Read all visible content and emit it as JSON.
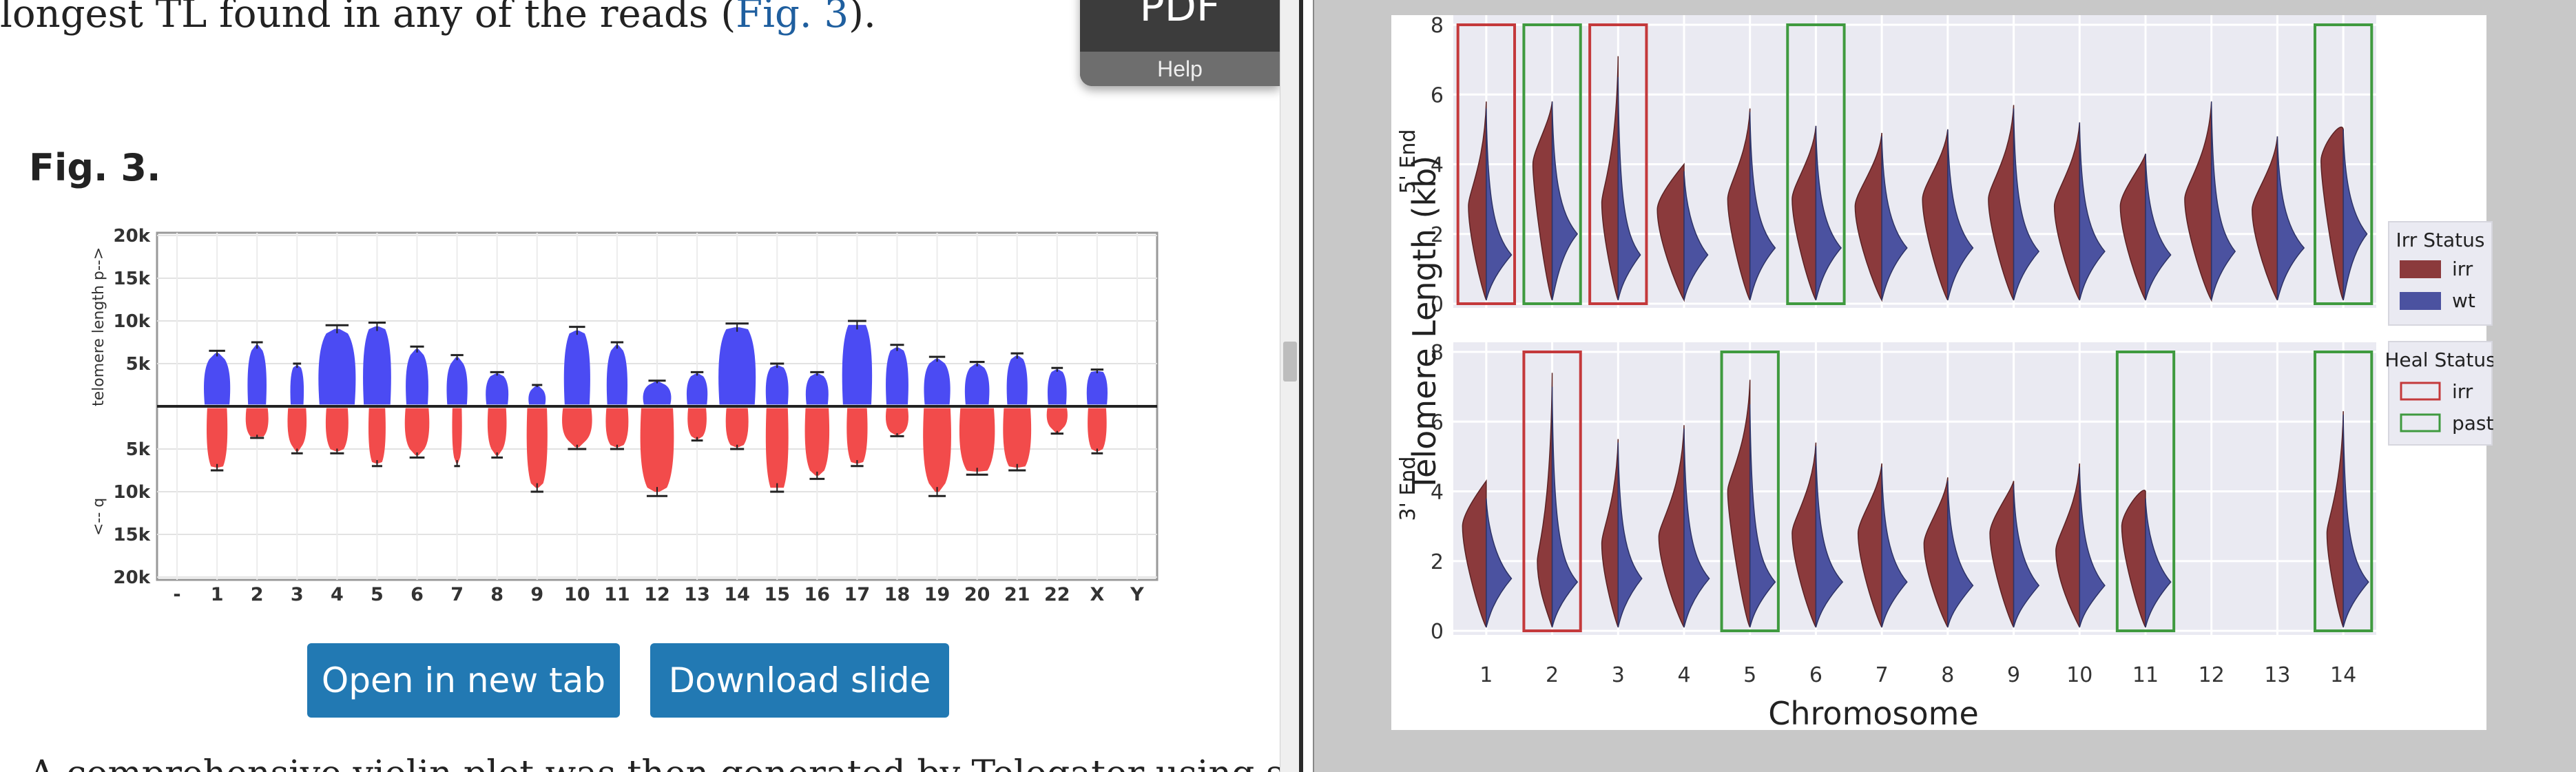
{
  "article": {
    "top_text": "longest TL found in any of the reads (",
    "top_link": "Fig. 3",
    "top_text_end": ").",
    "fig_heading": "Fig. 3.",
    "open_button": "Open in new tab",
    "download_button": "Download slide",
    "bottom_text": "A comprehensive violin plot was then generated by Telogator using simulated data (neck"
  },
  "pdf_widget": {
    "label": "PDF",
    "help": "Help"
  },
  "colors": {
    "p_arm": "#4b4bf3",
    "q_arm": "#f24b4b",
    "irr": "#8b3a3c",
    "wt": "#4b52a0",
    "irr_box": "#c4393b",
    "past_box": "#3f9a3f",
    "button": "#2279b3"
  },
  "chart_data": [
    {
      "type": "violin",
      "title": "",
      "ylabel_top": "telomere length  p-->",
      "ylabel_bottom": "<-- q",
      "y_ticks_top": [
        "20k",
        "15k",
        "10k",
        "5k"
      ],
      "y_ticks_bottom": [
        "5k",
        "10k",
        "15k",
        "20k"
      ],
      "categories": [
        "-",
        "1",
        "2",
        "3",
        "4",
        "5",
        "6",
        "7",
        "8",
        "9",
        "10",
        "11",
        "12",
        "13",
        "14",
        "15",
        "16",
        "17",
        "18",
        "19",
        "20",
        "21",
        "22",
        "X",
        "Y"
      ],
      "series": [
        {
          "arm": "p",
          "median": [
            null,
            5.5,
            6.5,
            4.5,
            8.5,
            9,
            6,
            5,
            3.5,
            2,
            8.5,
            6.5,
            2.5,
            3.5,
            9,
            4.5,
            3.5,
            9.5,
            6.5,
            5,
            4.5,
            5.5,
            4,
            4,
            null
          ],
          "max": [
            null,
            6.5,
            7.5,
            5,
            9.5,
            9.8,
            7,
            6,
            4,
            2.5,
            9.3,
            7.5,
            3,
            4,
            9.7,
            5,
            4,
            10,
            7.2,
            5.8,
            5.2,
            6.2,
            4.5,
            4.3,
            null
          ],
          "width": [
            null,
            0.7,
            0.5,
            0.35,
            1,
            0.75,
            0.6,
            0.55,
            0.6,
            0.45,
            0.7,
            0.55,
            0.75,
            0.55,
            1,
            0.6,
            0.6,
            0.8,
            0.6,
            0.7,
            0.65,
            0.55,
            0.5,
            0.55,
            null
          ]
        },
        {
          "arm": "q",
          "median": [
            null,
            7,
            3.5,
            4.5,
            5,
            6.5,
            5,
            6,
            5,
            9,
            4,
            4.5,
            9.5,
            3.5,
            4.5,
            9.5,
            7.5,
            6.5,
            3,
            9,
            7.5,
            7,
            2.5,
            5,
            null
          ],
          "max": [
            null,
            7.5,
            3.7,
            5.5,
            5.5,
            7,
            6,
            7,
            6,
            10,
            5,
            5,
            10.5,
            4,
            5,
            10,
            8.5,
            7,
            3.5,
            10.5,
            8,
            7.5,
            3.2,
            5.5,
            null
          ],
          "width": [
            null,
            0.55,
            0.6,
            0.5,
            0.6,
            0.45,
            0.65,
            0.25,
            0.5,
            0.55,
            0.8,
            0.6,
            0.9,
            0.5,
            0.6,
            0.6,
            0.65,
            0.55,
            0.6,
            0.75,
            0.95,
            0.75,
            0.55,
            0.5,
            null
          ]
        }
      ]
    },
    {
      "type": "violin",
      "title": "",
      "ylabel": "Telomere Length (kb)",
      "xlabel": "Chromosome",
      "categories": [
        "1",
        "2",
        "3",
        "4",
        "5",
        "6",
        "7",
        "8",
        "9",
        "10",
        "11",
        "12",
        "13",
        "14"
      ],
      "ylim": [
        0,
        8
      ],
      "y_ticks": [
        "0",
        "2",
        "4",
        "6",
        "8"
      ],
      "panels": [
        {
          "label": "5' End",
          "irr_max": [
            5.8,
            5.8,
            7.1,
            4,
            5.6,
            5.1,
            4.9,
            5,
            5.7,
            5.2,
            4.3,
            5.8,
            4.8,
            5
          ],
          "irr_peak": [
            2.8,
            4,
            2.9,
            2.7,
            3,
            3,
            2.8,
            3,
            3,
            2.8,
            2.8,
            3,
            2.7,
            4.1
          ],
          "irr_width": [
            0.6,
            0.65,
            0.55,
            0.9,
            0.75,
            0.8,
            0.9,
            0.85,
            0.85,
            0.85,
            0.85,
            0.9,
            0.85,
            0.75
          ],
          "wt_max": [
            5.6,
            5.8,
            6.5,
            3.8,
            5.5,
            5.1,
            4.8,
            5,
            5.6,
            5.2,
            4.3,
            5.8,
            4.8,
            5
          ],
          "wt_peak": [
            1.4,
            2,
            1.4,
            1.4,
            1.6,
            1.6,
            1.6,
            1.6,
            1.5,
            1.5,
            1.4,
            1.5,
            1.6,
            2
          ],
          "wt_width": [
            0.85,
            0.85,
            0.75,
            0.8,
            0.85,
            0.85,
            0.85,
            0.85,
            0.85,
            0.85,
            0.85,
            0.8,
            0.9,
            0.8
          ],
          "boxes": [
            {
              "chr": "1",
              "status": "irr"
            },
            {
              "chr": "2",
              "status": "past"
            },
            {
              "chr": "3",
              "status": "irr"
            },
            {
              "chr": "6",
              "status": "past"
            },
            {
              "chr": "14",
              "status": "past"
            }
          ]
        },
        {
          "label": "3' End",
          "irr_max": [
            4.3,
            7.4,
            5.5,
            5.9,
            7.2,
            5.4,
            4.8,
            4.4,
            4.3,
            4.8,
            4,
            null,
            null,
            6.3
          ],
          "irr_peak": [
            3,
            2,
            2.5,
            2.7,
            4,
            2.8,
            2.8,
            2.5,
            2.8,
            2.3,
            3,
            null,
            null,
            2.8
          ],
          "irr_width": [
            0.8,
            0.5,
            0.55,
            0.85,
            0.75,
            0.8,
            0.8,
            0.8,
            0.8,
            0.8,
            0.8,
            null,
            null,
            0.55
          ],
          "wt_max": [
            3.8,
            7,
            5.4,
            5.8,
            6.5,
            5.3,
            4.7,
            4.3,
            4.2,
            4.7,
            3.8,
            null,
            null,
            6.2
          ],
          "wt_peak": [
            1.5,
            1.4,
            1.5,
            1.5,
            1.4,
            1.4,
            1.4,
            1.3,
            1.3,
            1.3,
            1.4,
            null,
            null,
            1.4
          ],
          "wt_width": [
            0.85,
            0.85,
            0.8,
            0.85,
            0.85,
            0.9,
            0.85,
            0.85,
            0.85,
            0.85,
            0.85,
            null,
            null,
            0.85
          ],
          "boxes": [
            {
              "chr": "2",
              "status": "irr"
            },
            {
              "chr": "5",
              "status": "past"
            },
            {
              "chr": "11",
              "status": "past"
            },
            {
              "chr": "14",
              "status": "past"
            }
          ]
        }
      ],
      "legend_irr": {
        "title": "Irr Status",
        "items": [
          "irr",
          "wt"
        ]
      },
      "legend_heal": {
        "title": "Heal Status",
        "items": [
          "irr",
          "past"
        ]
      },
      "legend_position": "right"
    }
  ]
}
